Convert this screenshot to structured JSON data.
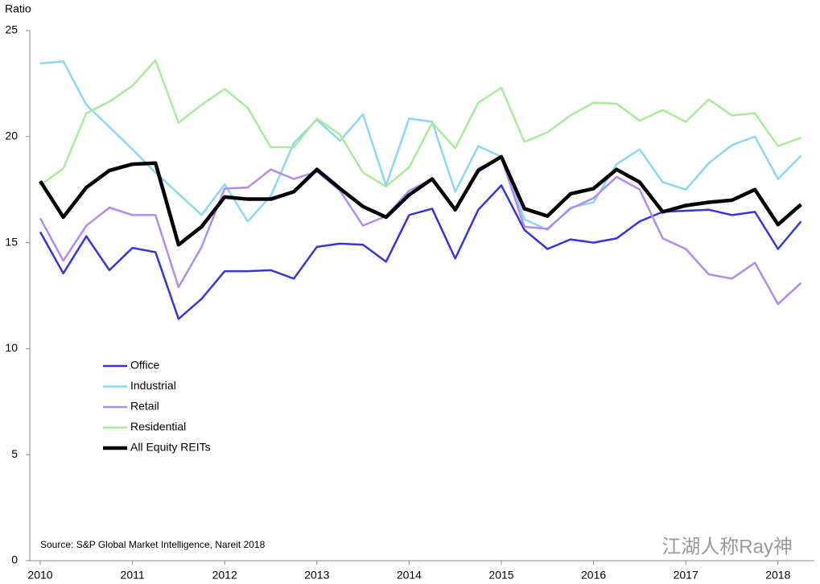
{
  "chart_data": {
    "type": "line",
    "y_label": "Ratio",
    "source": "Source: S&P Global Market Intelligence, Nareit 2018",
    "watermark": "江湖人称Ray神",
    "categories": [
      "2010",
      null,
      null,
      null,
      "2011",
      null,
      null,
      null,
      "2012",
      null,
      null,
      null,
      "2013",
      null,
      null,
      null,
      "2014",
      null,
      null,
      null,
      "2015",
      null,
      null,
      null,
      "2016",
      null,
      null,
      null,
      "2017",
      null,
      null,
      null,
      "2018",
      null
    ],
    "ylim": [
      0,
      25
    ],
    "yticks": [
      0,
      5,
      10,
      15,
      20,
      25
    ],
    "legend": "left",
    "series": [
      {
        "name": "Office",
        "color": "#3535e0",
        "line_width": 2.5,
        "values": [
          15.5,
          13.55,
          15.3,
          13.7,
          14.75,
          14.55,
          11.4,
          12.35,
          13.65,
          13.65,
          13.7,
          13.3,
          14.8,
          14.95,
          14.9,
          14.1,
          16.3,
          16.6,
          14.25,
          16.55,
          17.7,
          15.6,
          14.7,
          15.15,
          15.0,
          15.2,
          16.0,
          16.45,
          16.5,
          16.55,
          16.3,
          16.45,
          14.7,
          16.0
        ]
      },
      {
        "name": "Industrial",
        "color": "#8ad8f2",
        "line_width": 2.5,
        "values": [
          23.45,
          23.55,
          21.5,
          20.45,
          19.4,
          18.3,
          17.3,
          16.3,
          17.75,
          16.0,
          17.2,
          19.7,
          20.8,
          19.8,
          21.05,
          17.7,
          20.85,
          20.7,
          17.4,
          19.55,
          19.05,
          16.1,
          15.6,
          16.65,
          16.9,
          18.7,
          19.4,
          17.85,
          17.5,
          18.75,
          19.6,
          20.0,
          18.0,
          19.1
        ]
      },
      {
        "name": "Retail",
        "color": "#b48af2",
        "line_width": 2.5,
        "values": [
          16.15,
          14.15,
          15.8,
          16.65,
          16.3,
          16.3,
          12.9,
          14.8,
          17.55,
          17.6,
          18.45,
          18.0,
          18.35,
          17.45,
          15.8,
          16.25,
          17.45,
          18.0,
          16.6,
          18.5,
          19.0,
          15.75,
          15.65,
          16.6,
          17.1,
          18.1,
          17.5,
          15.2,
          14.7,
          13.5,
          13.3,
          14.05,
          12.1,
          13.1
        ]
      },
      {
        "name": "Residential",
        "color": "#a8ec9a",
        "line_width": 2.5,
        "values": [
          17.7,
          18.5,
          21.1,
          21.65,
          22.4,
          23.6,
          20.65,
          21.5,
          22.25,
          21.35,
          19.5,
          19.5,
          20.85,
          20.1,
          18.3,
          17.65,
          18.55,
          20.65,
          19.45,
          21.6,
          22.3,
          19.75,
          20.2,
          21.0,
          21.6,
          21.55,
          20.75,
          21.25,
          20.7,
          21.75,
          21.0,
          21.1,
          19.55,
          19.95
        ]
      },
      {
        "name": "All Equity REITs",
        "color": "#000000",
        "line_width": 4.5,
        "values": [
          17.9,
          16.2,
          17.6,
          18.4,
          18.7,
          18.75,
          14.9,
          15.75,
          17.15,
          17.05,
          17.05,
          17.4,
          18.45,
          17.55,
          16.7,
          16.2,
          17.25,
          18.0,
          16.55,
          18.4,
          19.05,
          16.6,
          16.25,
          17.3,
          17.55,
          18.45,
          17.85,
          16.45,
          16.75,
          16.9,
          17.0,
          17.5,
          15.85,
          16.8
        ]
      }
    ]
  }
}
